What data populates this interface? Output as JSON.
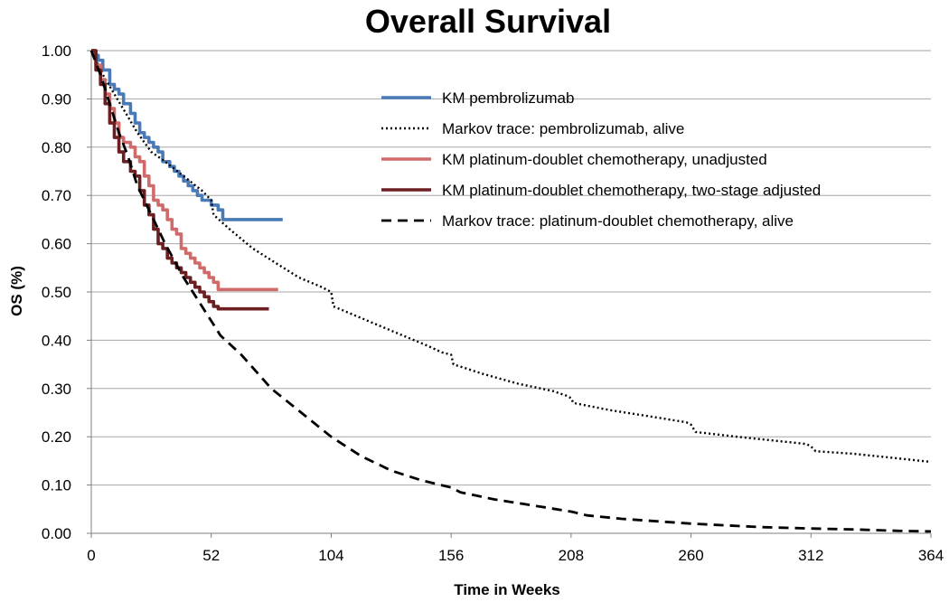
{
  "chart_data": {
    "type": "line",
    "title": "Overall Survival",
    "xlabel": "Time in Weeks",
    "ylabel": "OS (%)",
    "xlim": [
      0,
      364
    ],
    "ylim": [
      0,
      1
    ],
    "x_ticks": [
      0,
      52,
      104,
      156,
      208,
      260,
      312,
      364
    ],
    "x_tick_labels": [
      "0",
      "52",
      "104",
      "156",
      "208",
      "260",
      "312",
      "364"
    ],
    "y_ticks": [
      0,
      0.1,
      0.2,
      0.3,
      0.4,
      0.5,
      0.6,
      0.7,
      0.8,
      0.9,
      1.0
    ],
    "y_tick_labels": [
      "0.00",
      "0.10",
      "0.20",
      "0.30",
      "0.40",
      "0.50",
      "0.60",
      "0.70",
      "0.80",
      "0.90",
      "1.00"
    ],
    "grid": "horizontal",
    "legend_position": "top-right",
    "series": [
      {
        "name": "KM pembrolizumab",
        "style": "solid",
        "color": "#4a7ab5",
        "step": true,
        "x": [
          0,
          1,
          3,
          5,
          8,
          10,
          12,
          14,
          17,
          19,
          21,
          23,
          25,
          27,
          29,
          31,
          34,
          36,
          38,
          40,
          42,
          44,
          46,
          48,
          50,
          52,
          55,
          57,
          60,
          70,
          83
        ],
        "y": [
          1.0,
          0.99,
          0.98,
          0.96,
          0.93,
          0.92,
          0.91,
          0.89,
          0.87,
          0.85,
          0.83,
          0.82,
          0.81,
          0.8,
          0.79,
          0.77,
          0.76,
          0.75,
          0.74,
          0.73,
          0.72,
          0.71,
          0.7,
          0.69,
          0.69,
          0.68,
          0.67,
          0.65,
          0.65,
          0.65,
          0.65
        ]
      },
      {
        "name": "Markov trace: pembrolizumab, alive",
        "style": "dotted",
        "color": "#000000",
        "step": false,
        "x": [
          0,
          5,
          10,
          15,
          20,
          26,
          32,
          40,
          48,
          52,
          53,
          60,
          70,
          80,
          90,
          100,
          104,
          105,
          115,
          125,
          135,
          145,
          152,
          156,
          157,
          170,
          185,
          200,
          206,
          208,
          209,
          225,
          245,
          258,
          260,
          262,
          280,
          300,
          310,
          312,
          314,
          330,
          350,
          364
        ],
        "y": [
          1.0,
          0.95,
          0.91,
          0.87,
          0.83,
          0.79,
          0.77,
          0.74,
          0.71,
          0.69,
          0.66,
          0.63,
          0.59,
          0.56,
          0.53,
          0.51,
          0.5,
          0.47,
          0.45,
          0.43,
          0.41,
          0.39,
          0.375,
          0.37,
          0.35,
          0.33,
          0.31,
          0.295,
          0.285,
          0.28,
          0.27,
          0.255,
          0.24,
          0.23,
          0.225,
          0.21,
          0.2,
          0.19,
          0.185,
          0.18,
          0.17,
          0.165,
          0.155,
          0.148
        ]
      },
      {
        "name": "KM platinum-doublet chemotherapy, unadjusted",
        "style": "solid",
        "color": "#d06b6b",
        "step": true,
        "x": [
          0,
          2,
          4,
          6,
          8,
          10,
          12,
          14,
          17,
          19,
          21,
          23,
          25,
          27,
          29,
          31,
          33,
          35,
          37,
          39,
          41,
          43,
          45,
          47,
          49,
          51,
          53,
          55,
          57,
          81
        ],
        "y": [
          1.0,
          0.97,
          0.94,
          0.91,
          0.88,
          0.85,
          0.82,
          0.81,
          0.8,
          0.78,
          0.77,
          0.74,
          0.72,
          0.69,
          0.68,
          0.67,
          0.65,
          0.63,
          0.62,
          0.59,
          0.58,
          0.57,
          0.56,
          0.55,
          0.54,
          0.53,
          0.52,
          0.505,
          0.505,
          0.505
        ]
      },
      {
        "name": "KM platinum-doublet chemotherapy, two-stage adjusted",
        "style": "solid",
        "color": "#6b1f20",
        "step": true,
        "x": [
          0,
          2,
          4,
          6,
          8,
          10,
          12,
          14,
          17,
          19,
          21,
          23,
          25,
          27,
          29,
          31,
          33,
          35,
          37,
          39,
          41,
          43,
          45,
          47,
          49,
          51,
          53,
          55,
          77
        ],
        "y": [
          1.0,
          0.96,
          0.93,
          0.89,
          0.85,
          0.82,
          0.79,
          0.77,
          0.75,
          0.74,
          0.71,
          0.68,
          0.66,
          0.63,
          0.6,
          0.59,
          0.57,
          0.56,
          0.55,
          0.54,
          0.53,
          0.52,
          0.51,
          0.5,
          0.49,
          0.48,
          0.47,
          0.465,
          0.465
        ]
      },
      {
        "name": "Markov trace: platinum-doublet chemotherapy, alive",
        "style": "dashed",
        "color": "#000000",
        "step": false,
        "x": [
          0,
          4,
          8,
          12,
          16,
          20,
          26,
          32,
          40,
          48,
          52,
          56,
          65,
          78,
          91,
          104,
          117,
          130,
          143,
          156,
          160,
          175,
          195,
          208,
          215,
          230,
          260,
          290,
          312,
          330,
          350,
          364
        ],
        "y": [
          1.0,
          0.95,
          0.89,
          0.83,
          0.78,
          0.72,
          0.66,
          0.6,
          0.53,
          0.47,
          0.44,
          0.41,
          0.37,
          0.3,
          0.25,
          0.2,
          0.16,
          0.13,
          0.11,
          0.095,
          0.085,
          0.07,
          0.055,
          0.045,
          0.037,
          0.03,
          0.02,
          0.013,
          0.01,
          0.008,
          0.005,
          0.004
        ]
      }
    ]
  }
}
